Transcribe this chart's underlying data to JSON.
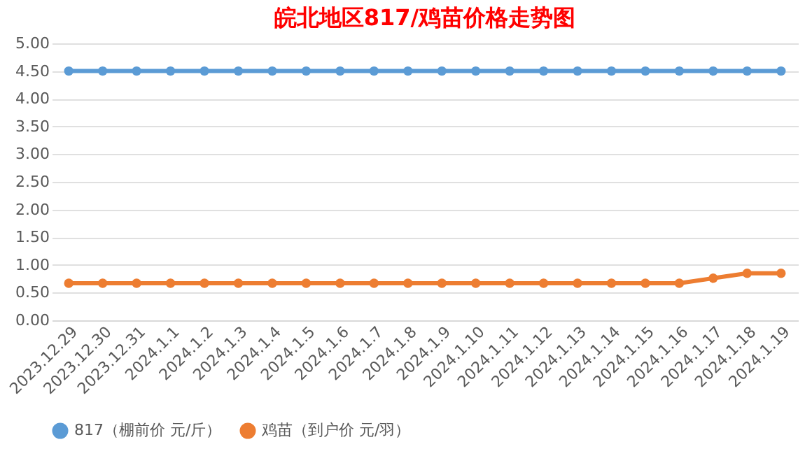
{
  "chart_data": {
    "type": "line",
    "title": "皖北地区817/鸡苗价格走势图",
    "categories": [
      "2023.12.29",
      "2023.12.30",
      "2023.12.31",
      "2024.1.1",
      "2024.1.2",
      "2024.1.3",
      "2024.1.4",
      "2024.1.5",
      "2024.1.6",
      "2024.1.7",
      "2024.1.8",
      "2024.1.9",
      "2024.1.10",
      "2024.1.11",
      "2024.1.12",
      "2024.1.13",
      "2024.1.14",
      "2024.1.15",
      "2024.1.16",
      "2024.1.17",
      "2024.1.18",
      "2024.1.19"
    ],
    "series": [
      {
        "name": "817（棚前价 元/斤）",
        "color": "#5b9bd5",
        "values": [
          4.5,
          4.5,
          4.5,
          4.5,
          4.5,
          4.5,
          4.5,
          4.5,
          4.5,
          4.5,
          4.5,
          4.5,
          4.5,
          4.5,
          4.5,
          4.5,
          4.5,
          4.5,
          4.5,
          4.5,
          4.5,
          4.5
        ]
      },
      {
        "name": "鸡苗（到户价 元/羽）",
        "color": "#ed7d31",
        "values": [
          0.67,
          0.67,
          0.67,
          0.67,
          0.67,
          0.67,
          0.67,
          0.67,
          0.67,
          0.67,
          0.67,
          0.67,
          0.67,
          0.67,
          0.67,
          0.67,
          0.67,
          0.67,
          0.67,
          0.76,
          0.85,
          0.85
        ]
      }
    ],
    "ylim": [
      0,
      5
    ],
    "yticks": [
      {
        "value": 0,
        "label": "0.00"
      },
      {
        "value": 0.5,
        "label": "0.50"
      },
      {
        "value": 1,
        "label": "1.00"
      },
      {
        "value": 1.5,
        "label": "1.50"
      },
      {
        "value": 2,
        "label": "2.00"
      },
      {
        "value": 2.5,
        "label": "2.50"
      },
      {
        "value": 3,
        "label": "3.00"
      },
      {
        "value": 3.5,
        "label": "3.50"
      },
      {
        "value": 4,
        "label": "4.00"
      },
      {
        "value": 4.5,
        "label": "4.50"
      },
      {
        "value": 5,
        "label": "5.00"
      }
    ],
    "grid": "y",
    "legend": "bottom",
    "marker": "circle",
    "line_style": "solid"
  }
}
